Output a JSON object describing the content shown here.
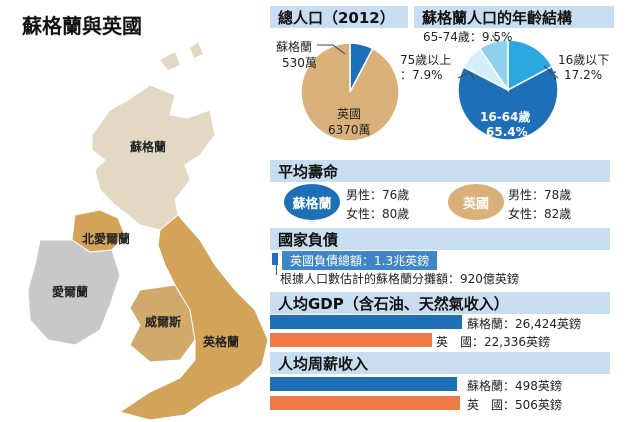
{
  "title": "蘇格蘭與英國",
  "map": {
    "labels": {
      "scotland": "蘇格蘭",
      "northern_ireland": "北愛爾蘭",
      "ireland": "愛爾蘭",
      "wales": "威爾斯",
      "england": "英格蘭"
    },
    "colors": {
      "scotland": "#e2d8c4",
      "northern_ireland": "#d4a35a",
      "ireland": "#c8c8c8",
      "wales": "#d1aa6b",
      "england": "#d4a35a"
    }
  },
  "population": {
    "header": "總人口（2012）",
    "scotland_label": "蘇格蘭",
    "scotland_value": "530萬",
    "uk_label": "英國",
    "uk_value": "6370萬"
  },
  "age_structure": {
    "header": "蘇格蘭人口的年齡結構",
    "labels": {
      "a65_74": "65-74歲：9.5%",
      "a75_line1": "75歲以上",
      "a75_line2": "：7.9%",
      "under16_line1": "16歲以下",
      "under16_line2": "：17.2%",
      "a16_64_line1": "16-64歲",
      "a16_64_line2": "65.4%"
    }
  },
  "life_expectancy": {
    "header": "平均壽命",
    "scotland_badge": "蘇格蘭",
    "scotland_male": "男性：76歲",
    "scotland_female": "女性：80歲",
    "uk_badge": "英國",
    "uk_male": "男性：78歲",
    "uk_female": "女性：82歲"
  },
  "debt": {
    "header": "國家負債",
    "total": "英國負債總額：1.3兆英鎊",
    "share": "根據人口數估計的蘇格蘭分攤額：920億英鎊"
  },
  "gdp": {
    "header": "人均GDP（含石油、天然氣收入）",
    "scotland_label": "蘇格蘭：26,424英鎊",
    "uk_label": "英　國：22,336英鎊"
  },
  "wage": {
    "header": "人均周薪收入",
    "scotland_label": "蘇格蘭：498英鎊",
    "uk_label": "英　國：506英鎊"
  },
  "colors": {
    "accent_blue": "#1d6fb8",
    "accent_orange": "#f07a45",
    "tan": "#d9b07a",
    "header_bg": "#c9ddf0"
  },
  "chart_data": [
    {
      "type": "pie",
      "title": "總人口（2012）",
      "unit": "萬",
      "categories": [
        "蘇格蘭",
        "英國"
      ],
      "values": [
        530,
        6370
      ]
    },
    {
      "type": "pie",
      "title": "蘇格蘭人口的年齡結構",
      "unit": "%",
      "categories": [
        "16歲以下",
        "16-64歲",
        "75歲以上",
        "65-74歲"
      ],
      "values": [
        17.2,
        65.4,
        7.9,
        9.5
      ],
      "colors": [
        "#2aa8e0",
        "#1d6fb8",
        "#d4eefb",
        "#8fd0ef"
      ]
    },
    {
      "type": "table",
      "title": "平均壽命",
      "unit": "歲",
      "columns": [
        "男性",
        "女性"
      ],
      "rows": [
        {
          "name": "蘇格蘭",
          "values": [
            76,
            80
          ]
        },
        {
          "name": "英國",
          "values": [
            78,
            82
          ]
        }
      ]
    },
    {
      "type": "bar",
      "title": "人均GDP（含石油、天然氣收入）",
      "unit": "英鎊",
      "categories": [
        "蘇格蘭",
        "英國"
      ],
      "values": [
        26424,
        22336
      ],
      "colors": [
        "#1d6fb8",
        "#f07a45"
      ]
    },
    {
      "type": "bar",
      "title": "人均周薪收入",
      "unit": "英鎊",
      "categories": [
        "蘇格蘭",
        "英國"
      ],
      "values": [
        498,
        506
      ],
      "colors": [
        "#1d6fb8",
        "#f07a45"
      ]
    }
  ]
}
